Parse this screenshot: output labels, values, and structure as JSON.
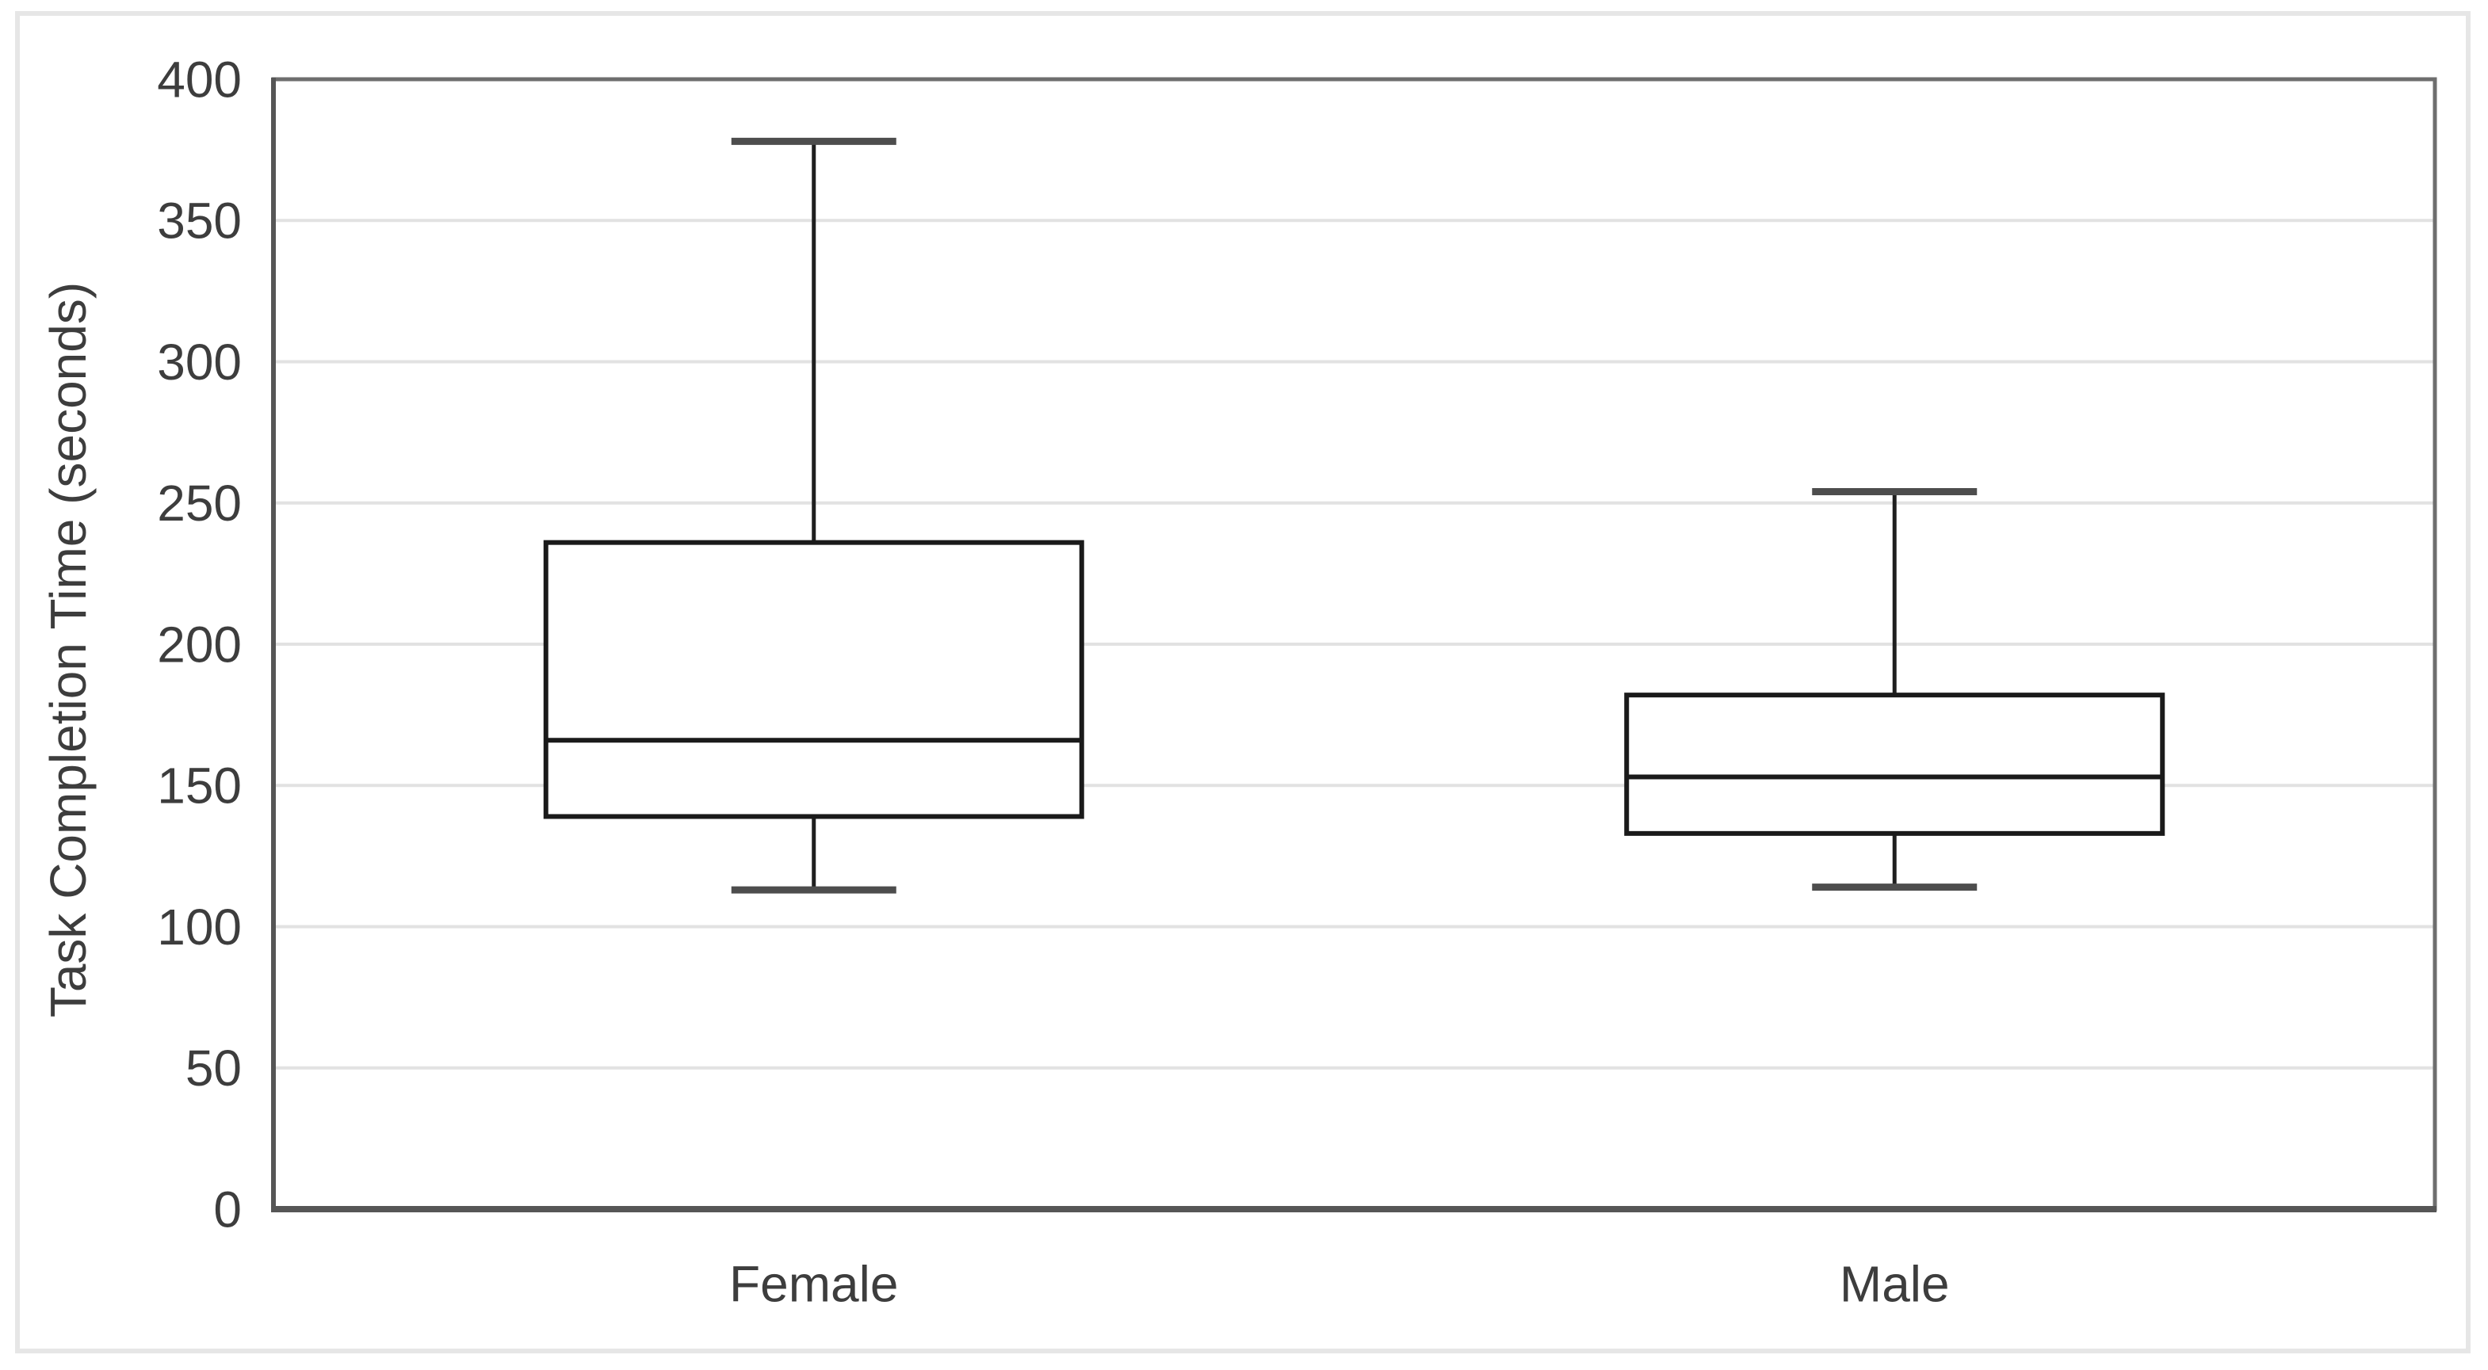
{
  "figure": {
    "background": "#ffffff",
    "outer_border_color": "#e6e6e6"
  },
  "chart_data": {
    "type": "boxplot",
    "title": "",
    "xlabel": "",
    "ylabel": "Task Completion Time (seconds)",
    "categories": [
      "Female",
      "Male"
    ],
    "series": [
      {
        "name": "Female",
        "min": 113,
        "q1": 139,
        "median": 166,
        "q3": 236,
        "max": 378
      },
      {
        "name": "Male",
        "min": 114,
        "q1": 133,
        "median": 153,
        "q3": 182,
        "max": 254
      }
    ],
    "ylim": [
      0,
      400
    ],
    "yticks": [
      0,
      50,
      100,
      150,
      200,
      250,
      300,
      350,
      400
    ],
    "grid": "horizontal",
    "legend": "none",
    "colors": {
      "box_stroke": "#1a1a1a",
      "median_stroke": "#1a1a1a",
      "whisker_stroke": "#1f1f1f",
      "whisker_cap_stroke": "#4d4d4d",
      "plot_border": "#6e6e6e",
      "axis_line": "#565656",
      "gridline": "#e2e2e2",
      "text": "#3d3d3d"
    }
  }
}
